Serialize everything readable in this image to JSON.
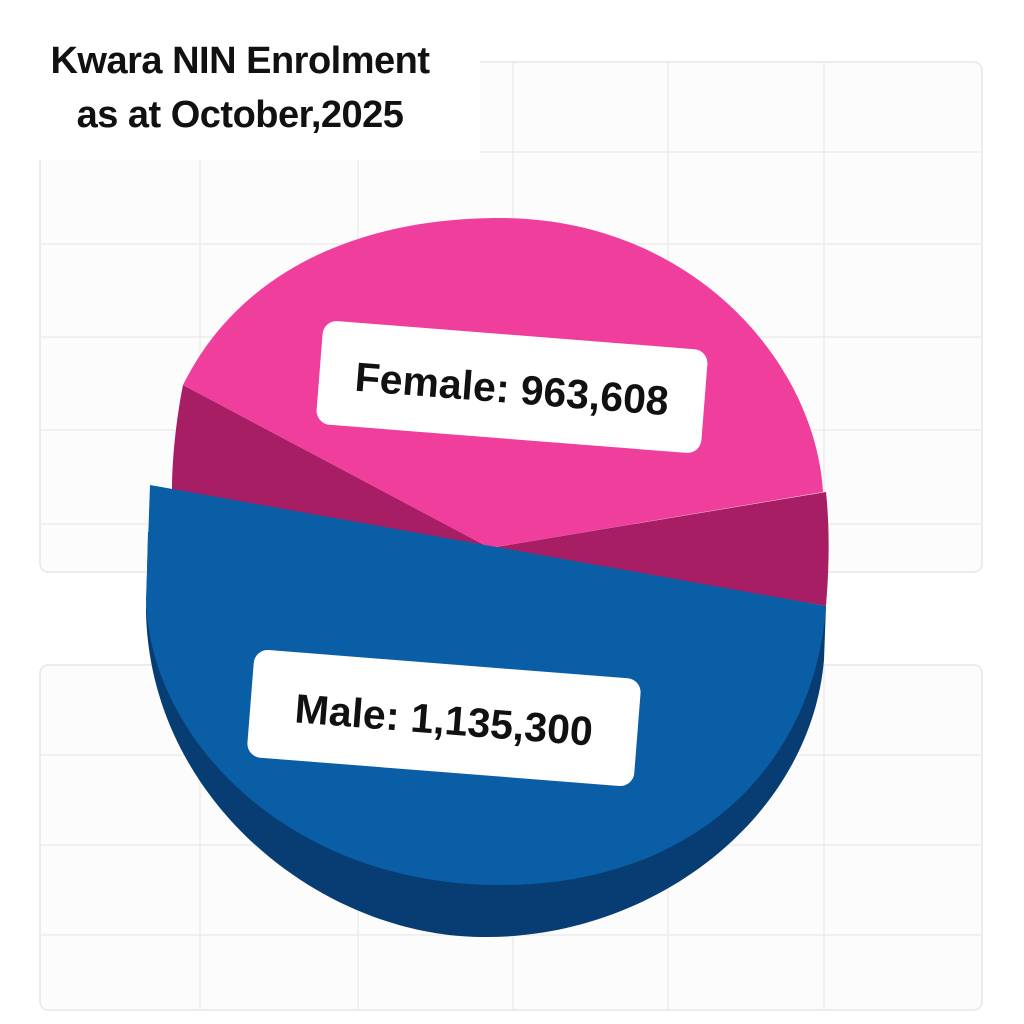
{
  "title_lines": [
    "Kwara NIN Enrolment",
    "as at October,2025"
  ],
  "chart_data": {
    "type": "pie",
    "title": "Kwara NIN Enrolment as at October,2025",
    "slices": [
      {
        "label": "Female",
        "value": 963608,
        "value_text": "963,608",
        "color": "#f03e9d",
        "side_color": "#a81e64"
      },
      {
        "label": "Male",
        "value": 1135300,
        "value_text": "1,135,300",
        "color": "#0a5ea6",
        "side_color": "#083d73"
      }
    ]
  }
}
